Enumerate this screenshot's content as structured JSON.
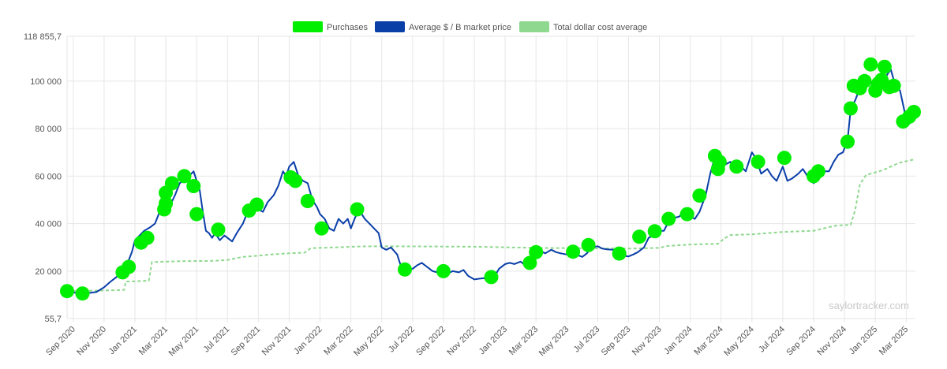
{
  "colors": {
    "purchases": "#00ee00",
    "market_price": "#0a3fa8",
    "cost_average": "#8fd88f",
    "grid": "#e6e6e6",
    "axis_text": "#555555"
  },
  "watermark": "saylortracker.com",
  "chart_data": {
    "type": "line",
    "legend_position": "top-center",
    "legend": [
      "Purchases",
      "Average $ / B market price",
      "Total dollar cost average"
    ],
    "y_ticks": [
      "118 855,7",
      "100 000",
      "80 000",
      "60 000",
      "40 000",
      "20 000",
      "55,7"
    ],
    "ylim": [
      55.7,
      118855.7
    ],
    "x_ticks": [
      {
        "label": "Sep 2020",
        "t": 0
      },
      {
        "label": "Nov 2020",
        "t": 2
      },
      {
        "label": "Jan 2021",
        "t": 4
      },
      {
        "label": "Mar 2021",
        "t": 6
      },
      {
        "label": "May 2021",
        "t": 8
      },
      {
        "label": "Jul 2021",
        "t": 10
      },
      {
        "label": "Sep 2021",
        "t": 12
      },
      {
        "label": "Nov 2021",
        "t": 14
      },
      {
        "label": "Jan 2022",
        "t": 16
      },
      {
        "label": "Mar 2022",
        "t": 18
      },
      {
        "label": "May 2022",
        "t": 20
      },
      {
        "label": "Jul 2022",
        "t": 22
      },
      {
        "label": "Sep 2022",
        "t": 24
      },
      {
        "label": "Nov 2022",
        "t": 26
      },
      {
        "label": "Jan 2023",
        "t": 28
      },
      {
        "label": "Mar 2023",
        "t": 30
      },
      {
        "label": "May 2023",
        "t": 32
      },
      {
        "label": "Jul 2023",
        "t": 34
      },
      {
        "label": "Sep 2023",
        "t": 36
      },
      {
        "label": "Nov 2023",
        "t": 38
      },
      {
        "label": "Jan 2024",
        "t": 40
      },
      {
        "label": "Mar 2024",
        "t": 42
      },
      {
        "label": "May 2024",
        "t": 44
      },
      {
        "label": "Jul 2024",
        "t": 46
      },
      {
        "label": "Sep 2024",
        "t": 48
      },
      {
        "label": "Nov 2024",
        "t": 50
      },
      {
        "label": "Jan 2025",
        "t": 52
      },
      {
        "label": "Mar 2025",
        "t": 54
      }
    ],
    "t_range": [
      -0.4,
      54.6
    ],
    "series": [
      {
        "name": "Average $ / B market price",
        "style": "line",
        "points": [
          [
            -0.4,
            11500
          ],
          [
            0,
            11000
          ],
          [
            0.5,
            10600
          ],
          [
            1,
            10800
          ],
          [
            1.5,
            11200
          ],
          [
            2,
            13200
          ],
          [
            2.4,
            15500
          ],
          [
            2.8,
            17500
          ],
          [
            3.2,
            19500
          ],
          [
            3.5,
            23000
          ],
          [
            3.8,
            28000
          ],
          [
            4,
            33000
          ],
          [
            4.3,
            35000
          ],
          [
            4.6,
            37000
          ],
          [
            5,
            38500
          ],
          [
            5.3,
            40000
          ],
          [
            5.6,
            45000
          ],
          [
            5.9,
            50000
          ],
          [
            6.1,
            53000
          ],
          [
            6.3,
            48000
          ],
          [
            6.6,
            52000
          ],
          [
            6.9,
            57000
          ],
          [
            7.2,
            58500
          ],
          [
            7.5,
            60000
          ],
          [
            7.8,
            62000
          ],
          [
            8,
            58000
          ],
          [
            8.2,
            54000
          ],
          [
            8.4,
            45000
          ],
          [
            8.6,
            37000
          ],
          [
            8.8,
            36000
          ],
          [
            9,
            34000
          ],
          [
            9.2,
            36000
          ],
          [
            9.5,
            33000
          ],
          [
            9.8,
            35000
          ],
          [
            10,
            34000
          ],
          [
            10.3,
            32500
          ],
          [
            10.6,
            36000
          ],
          [
            11,
            40000
          ],
          [
            11.3,
            45000
          ],
          [
            11.6,
            47000
          ],
          [
            12,
            46000
          ],
          [
            12.3,
            45000
          ],
          [
            12.6,
            49000
          ],
          [
            13,
            52000
          ],
          [
            13.3,
            56000
          ],
          [
            13.6,
            62000
          ],
          [
            13.8,
            60000
          ],
          [
            14,
            64000
          ],
          [
            14.3,
            66000
          ],
          [
            14.6,
            60000
          ],
          [
            14.9,
            58000
          ],
          [
            15.2,
            57000
          ],
          [
            15.5,
            50000
          ],
          [
            15.8,
            47000
          ],
          [
            16,
            44000
          ],
          [
            16.3,
            42000
          ],
          [
            16.6,
            38000
          ],
          [
            16.9,
            37000
          ],
          [
            17.2,
            42000
          ],
          [
            17.5,
            40000
          ],
          [
            17.8,
            42000
          ],
          [
            18,
            38000
          ],
          [
            18.3,
            43000
          ],
          [
            18.6,
            45000
          ],
          [
            18.9,
            42000
          ],
          [
            19.2,
            40000
          ],
          [
            19.5,
            38000
          ],
          [
            19.8,
            36000
          ],
          [
            20,
            30000
          ],
          [
            20.3,
            29000
          ],
          [
            20.6,
            30000
          ],
          [
            21,
            27000
          ],
          [
            21.3,
            21000
          ],
          [
            21.6,
            20500
          ],
          [
            22,
            21000
          ],
          [
            22.3,
            22500
          ],
          [
            22.6,
            23500
          ],
          [
            23,
            21500
          ],
          [
            23.3,
            20000
          ],
          [
            23.6,
            19500
          ],
          [
            24,
            19800
          ],
          [
            24.3,
            19000
          ],
          [
            24.6,
            20000
          ],
          [
            25,
            19500
          ],
          [
            25.3,
            20500
          ],
          [
            25.6,
            18000
          ],
          [
            26,
            16500
          ],
          [
            26.3,
            16800
          ],
          [
            26.6,
            17000
          ],
          [
            27,
            16500
          ],
          [
            27.3,
            17500
          ],
          [
            27.6,
            21000
          ],
          [
            28,
            23000
          ],
          [
            28.3,
            23500
          ],
          [
            28.6,
            23000
          ],
          [
            29,
            24000
          ],
          [
            29.3,
            22500
          ],
          [
            29.6,
            26000
          ],
          [
            30,
            28000
          ],
          [
            30.3,
            28500
          ],
          [
            30.6,
            27500
          ],
          [
            31,
            29000
          ],
          [
            31.3,
            28000
          ],
          [
            31.6,
            27500
          ],
          [
            32,
            27000
          ],
          [
            32.3,
            26500
          ],
          [
            32.6,
            27000
          ],
          [
            33,
            26000
          ],
          [
            33.3,
            27500
          ],
          [
            33.6,
            30000
          ],
          [
            34,
            30500
          ],
          [
            34.3,
            29500
          ],
          [
            34.6,
            29200
          ],
          [
            35,
            29000
          ],
          [
            35.3,
            27000
          ],
          [
            35.6,
            26500
          ],
          [
            36,
            26200
          ],
          [
            36.3,
            27000
          ],
          [
            36.6,
            28000
          ],
          [
            37,
            30000
          ],
          [
            37.3,
            34000
          ],
          [
            37.6,
            35000
          ],
          [
            38,
            37000
          ],
          [
            38.3,
            37000
          ],
          [
            38.6,
            41000
          ],
          [
            39,
            42500
          ],
          [
            39.3,
            43000
          ],
          [
            39.6,
            46000
          ],
          [
            40,
            43000
          ],
          [
            40.3,
            42000
          ],
          [
            40.6,
            45000
          ],
          [
            41,
            52000
          ],
          [
            41.3,
            61000
          ],
          [
            41.6,
            68000
          ],
          [
            41.8,
            70000
          ],
          [
            42,
            68000
          ],
          [
            42.3,
            65000
          ],
          [
            42.6,
            66000
          ],
          [
            43,
            63000
          ],
          [
            43.3,
            64000
          ],
          [
            43.6,
            62000
          ],
          [
            44,
            70000
          ],
          [
            44.3,
            67000
          ],
          [
            44.6,
            61000
          ],
          [
            45,
            63000
          ],
          [
            45.3,
            60000
          ],
          [
            45.6,
            58000
          ],
          [
            46,
            64000
          ],
          [
            46.3,
            58000
          ],
          [
            46.6,
            59000
          ],
          [
            47,
            61000
          ],
          [
            47.3,
            63000
          ],
          [
            47.6,
            60000
          ],
          [
            48,
            57000
          ],
          [
            48.3,
            59000
          ],
          [
            48.6,
            62000
          ],
          [
            49,
            62000
          ],
          [
            49.3,
            66000
          ],
          [
            49.6,
            69000
          ],
          [
            49.9,
            70000
          ],
          [
            50.2,
            75000
          ],
          [
            50.4,
            88000
          ],
          [
            50.7,
            92000
          ],
          [
            51,
            97000
          ],
          [
            51.3,
            97000
          ],
          [
            51.6,
            101000
          ],
          [
            52,
            96000
          ],
          [
            52.3,
            94000
          ],
          [
            52.6,
            101000
          ],
          [
            53,
            105000
          ],
          [
            53.3,
            98000
          ],
          [
            53.6,
            96000
          ],
          [
            54,
            84000
          ],
          [
            54.2,
            82000
          ],
          [
            54.5,
            86000
          ]
        ]
      },
      {
        "name": "Total dollar cost average",
        "style": "dashed",
        "points": [
          [
            -0.4,
            11600
          ],
          [
            1.5,
            11800
          ],
          [
            2.9,
            12000
          ],
          [
            3.3,
            12100
          ],
          [
            3.4,
            15600
          ],
          [
            4.9,
            16000
          ],
          [
            5.1,
            23800
          ],
          [
            7,
            24200
          ],
          [
            9,
            24300
          ],
          [
            10,
            24700
          ],
          [
            11,
            26000
          ],
          [
            12,
            26500
          ],
          [
            13,
            27100
          ],
          [
            14,
            27500
          ],
          [
            15,
            27800
          ],
          [
            15.2,
            28700
          ],
          [
            15.4,
            29700
          ],
          [
            17,
            30000
          ],
          [
            18.5,
            30400
          ],
          [
            20,
            30500
          ],
          [
            26,
            30300
          ],
          [
            30,
            29800
          ],
          [
            34,
            29600
          ],
          [
            36,
            29500
          ],
          [
            38,
            29800
          ],
          [
            38.5,
            30600
          ],
          [
            40,
            31200
          ],
          [
            41.8,
            31500
          ],
          [
            42.2,
            33700
          ],
          [
            42.6,
            35200
          ],
          [
            44,
            35500
          ],
          [
            46,
            36500
          ],
          [
            48,
            37000
          ],
          [
            49,
            38500
          ],
          [
            49.5,
            39200
          ],
          [
            50.4,
            39500
          ],
          [
            50.7,
            46000
          ],
          [
            51,
            56500
          ],
          [
            51.4,
            60500
          ],
          [
            52.5,
            62500
          ],
          [
            53.5,
            65500
          ],
          [
            54.5,
            67000
          ]
        ]
      },
      {
        "name": "Purchases",
        "style": "markers",
        "points": [
          [
            -0.4,
            11600
          ],
          [
            0.6,
            10600
          ],
          [
            3.2,
            19500
          ],
          [
            3.6,
            21800
          ],
          [
            4.4,
            32000
          ],
          [
            4.8,
            34000
          ],
          [
            5.9,
            46000
          ],
          [
            6,
            48500
          ],
          [
            6,
            53000
          ],
          [
            6.4,
            57000
          ],
          [
            7.2,
            60000
          ],
          [
            7.8,
            55800
          ],
          [
            8,
            44000
          ],
          [
            9.4,
            37500
          ],
          [
            11.4,
            45500
          ],
          [
            11.9,
            48000
          ],
          [
            14.1,
            59500
          ],
          [
            14.4,
            58000
          ],
          [
            15.2,
            49500
          ],
          [
            16.1,
            38000
          ],
          [
            18.4,
            46000
          ],
          [
            21.5,
            20700
          ],
          [
            24,
            20000
          ],
          [
            27.1,
            17500
          ],
          [
            29.6,
            23500
          ],
          [
            30,
            28000
          ],
          [
            32.4,
            28200
          ],
          [
            33.4,
            31000
          ],
          [
            35.4,
            27400
          ],
          [
            36.7,
            34500
          ],
          [
            37.7,
            36800
          ],
          [
            38.6,
            42000
          ],
          [
            39.8,
            44000
          ],
          [
            40.6,
            51800
          ],
          [
            41.6,
            68500
          ],
          [
            41.8,
            63000
          ],
          [
            41.9,
            66000
          ],
          [
            43,
            64000
          ],
          [
            44.4,
            66000
          ],
          [
            46.1,
            67700
          ],
          [
            48,
            60000
          ],
          [
            48.3,
            62000
          ],
          [
            50.2,
            74500
          ],
          [
            50.4,
            88500
          ],
          [
            50.6,
            98000
          ],
          [
            51,
            97000
          ],
          [
            51.3,
            100000
          ],
          [
            51.7,
            107000
          ],
          [
            52,
            96000
          ],
          [
            52.2,
            99000
          ],
          [
            52.4,
            100500
          ],
          [
            52.6,
            106000
          ],
          [
            52.9,
            97500
          ],
          [
            53.2,
            98000
          ],
          [
            53.8,
            83000
          ],
          [
            54.2,
            85000
          ],
          [
            54.5,
            87000
          ]
        ]
      }
    ]
  }
}
